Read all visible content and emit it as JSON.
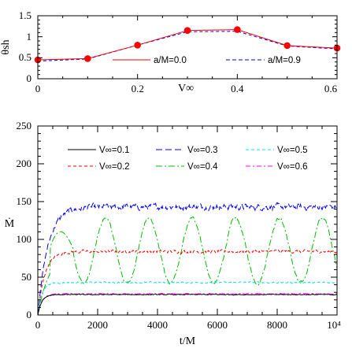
{
  "chart_data": [
    {
      "type": "line",
      "xlabel": "V∞",
      "ylabel": "θsh",
      "xlim": [
        0,
        0.6
      ],
      "ylim": [
        0,
        1.5
      ],
      "xticks": [
        "0",
        "0.2",
        "0.4",
        "0.6"
      ],
      "yticks": [
        "0",
        "0.5",
        "1",
        "1.5"
      ],
      "x": [
        0.0,
        0.1,
        0.2,
        0.3,
        0.4,
        0.5,
        0.6
      ],
      "series": [
        {
          "name": "a/M=0.0",
          "color": "#ff0000",
          "style": "solid",
          "markers": true,
          "values": [
            0.45,
            0.48,
            0.8,
            1.15,
            1.17,
            0.79,
            0.73
          ]
        },
        {
          "name": "a/M=0.9",
          "color": "#0000ff",
          "style": "dashed",
          "markers": false,
          "values": [
            0.42,
            0.47,
            0.8,
            1.12,
            1.13,
            0.78,
            0.71
          ]
        }
      ],
      "legend_position": "bottom-right"
    },
    {
      "type": "line",
      "xlabel": "t/M",
      "ylabel": "Ṁ",
      "xlim": [
        0,
        10000
      ],
      "ylim": [
        0,
        250
      ],
      "xticks": [
        "0",
        "2000",
        "4000",
        "6000",
        "8000",
        "10⁴"
      ],
      "yticks": [
        "0",
        "50",
        "100",
        "150",
        "200",
        "250"
      ],
      "legend_position": "top",
      "series": [
        {
          "name": "V∞=0.1",
          "color": "#000000",
          "style": "solid",
          "mean": 27,
          "noise": 1.0,
          "rise": 400
        },
        {
          "name": "V∞=0.2",
          "color": "#ff0000",
          "style": "dashed",
          "mean": 84,
          "noise": 3.5,
          "rise": 700
        },
        {
          "name": "V∞=0.3",
          "color": "#0000ff",
          "style": "longdash",
          "mean": 143,
          "noise": 7,
          "rise": 1000
        },
        {
          "name": "V∞=0.4",
          "color": "#00bb00",
          "style": "dashdot",
          "mean": 85,
          "oscillation_amplitude": 43,
          "oscillation_period": 1450,
          "rise": 1200
        },
        {
          "name": "V∞=0.5",
          "color": "#00e0e0",
          "style": "dashed",
          "mean": 43,
          "noise": 1.8,
          "rise": 400
        },
        {
          "name": "V∞=0.6",
          "color": "#ff00ff",
          "style": "dashdot",
          "mean": 28,
          "noise": 0.8,
          "rise": 400
        }
      ]
    }
  ]
}
